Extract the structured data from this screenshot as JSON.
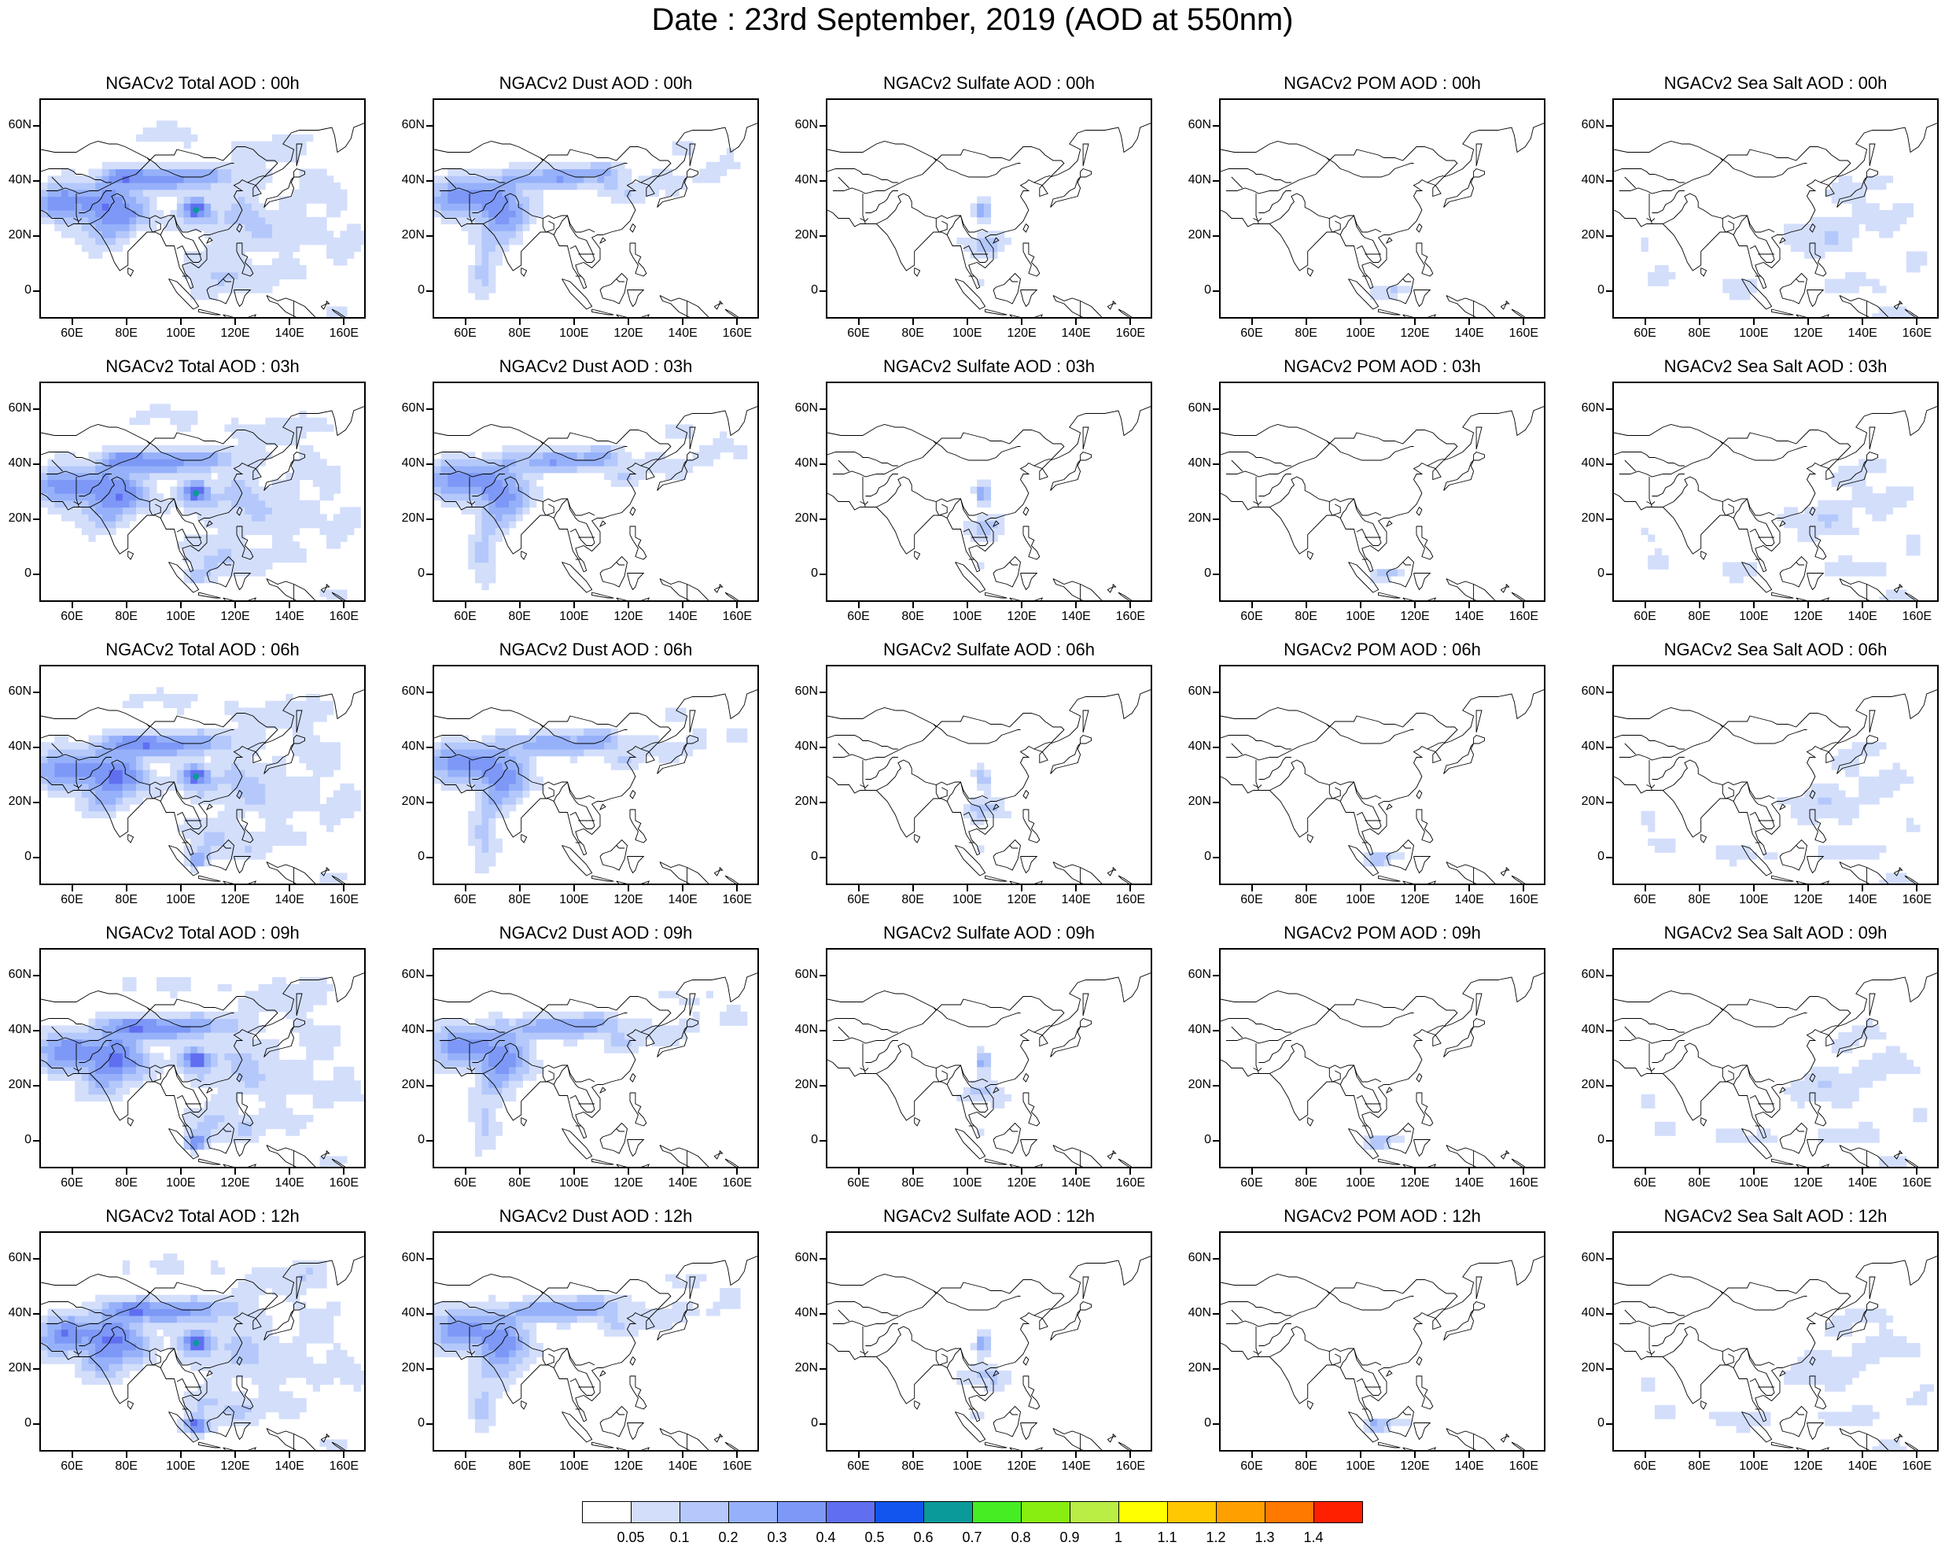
{
  "title": "Date : 23rd September, 2019 (AOD at 550nm)",
  "x_ticks": [
    "60E",
    "80E",
    "100E",
    "120E",
    "140E",
    "160E"
  ],
  "y_ticks": [
    "60N",
    "40N",
    "20N",
    "0"
  ],
  "rows": [
    {
      "hour": "00h",
      "titles": [
        "NGACv2 Total AOD : 00h",
        "NGACv2 Dust AOD : 00h",
        "NGACv2 Sulfate AOD : 00h",
        "NGACv2 POM AOD : 00h",
        "NGACv2 Sea Salt AOD : 00h"
      ]
    },
    {
      "hour": "03h",
      "titles": [
        "NGACv2 Total AOD : 03h",
        "NGACv2 Dust AOD : 03h",
        "NGACv2 Sulfate AOD : 03h",
        "NGACv2 POM AOD : 03h",
        "NGACv2 Sea Salt AOD : 03h"
      ]
    },
    {
      "hour": "06h",
      "titles": [
        "NGACv2 Total AOD : 06h",
        "NGACv2 Dust AOD : 06h",
        "NGACv2 Sulfate AOD : 06h",
        "NGACv2 POM AOD : 06h",
        "NGACv2 Sea Salt AOD : 06h"
      ]
    },
    {
      "hour": "09h",
      "titles": [
        "NGACv2 Total AOD : 09h",
        "NGACv2 Dust AOD : 09h",
        "NGACv2 Sulfate AOD : 09h",
        "NGACv2 POM AOD : 09h",
        "NGACv2 Sea Salt  AOD : 09h"
      ]
    },
    {
      "hour": "12h",
      "titles": [
        "NGACv2 Total AOD  : 12h",
        "NGACv2 Dust AOD : 12h",
        "NGACv2 Sulfate AOD : 12h",
        "NGACv2 POM  AOD : 12h",
        "NGACv2 Sea Salt  AOD : 12h"
      ]
    }
  ],
  "species": [
    "total",
    "dust",
    "sulfate",
    "pom",
    "seasalt"
  ],
  "colorbar": {
    "colors": [
      "#ffffff",
      "#d3defb",
      "#b4c8fb",
      "#96b1fa",
      "#7d98f6",
      "#5f6ff0",
      "#1155ee",
      "#0a9a9a",
      "#44ee22",
      "#88ee11",
      "#bbee44",
      "#ffff00",
      "#ffc800",
      "#ffa000",
      "#ff7800",
      "#ff2000"
    ],
    "labels": [
      "0.05",
      "0.1",
      "0.2",
      "0.3",
      "0.4",
      "0.5",
      "0.6",
      "0.7",
      "0.8",
      "0.9",
      "1",
      "1.1",
      "1.2",
      "1.3",
      "1.4"
    ]
  }
}
